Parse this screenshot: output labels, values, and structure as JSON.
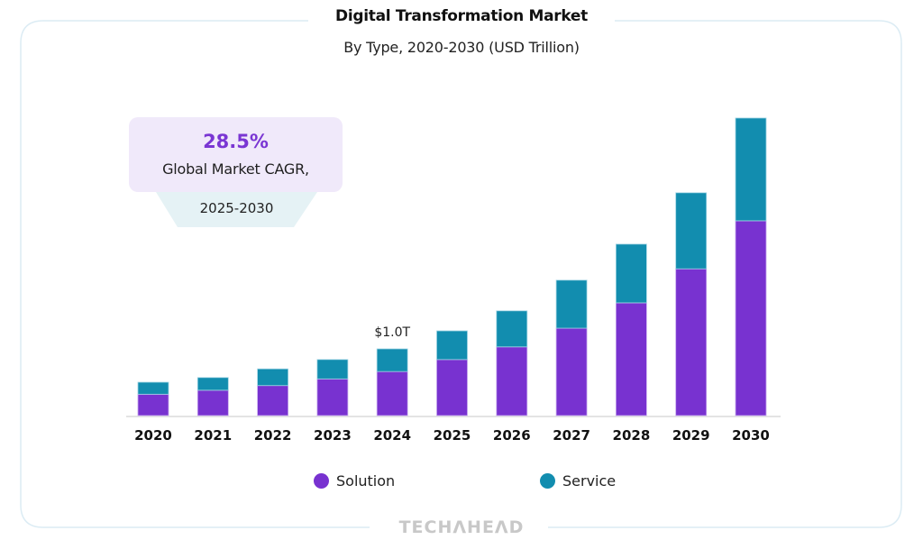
{
  "chart_data": {
    "type": "bar",
    "stacked": true,
    "title": "Digital Transformation Market",
    "subtitle": "By Type, 2020-2030 (USD Trillion)",
    "xlabel": "",
    "ylabel": "",
    "categories": [
      "2020",
      "2021",
      "2022",
      "2023",
      "2024",
      "2025",
      "2026",
      "2027",
      "2028",
      "2029",
      "2030"
    ],
    "series": [
      {
        "name": "Solution",
        "color": "#7832d0",
        "values": [
          0.32,
          0.38,
          0.45,
          0.55,
          0.66,
          0.84,
          1.03,
          1.31,
          1.69,
          2.2,
          2.92
        ]
      },
      {
        "name": "Service",
        "color": "#128daf",
        "values": [
          0.18,
          0.19,
          0.25,
          0.29,
          0.34,
          0.43,
          0.54,
          0.72,
          0.88,
          1.14,
          1.54
        ]
      }
    ],
    "ylim": [
      0,
      4.6
    ],
    "grid": false,
    "y_axis_visible": false,
    "legend_position": "bottom",
    "annotations": [
      {
        "category": "2024",
        "text": "$1.0T"
      }
    ]
  },
  "callout": {
    "value": "28.5%",
    "label": "Global Market CAGR,",
    "period": "2025-2030"
  },
  "legend": [
    {
      "name": "Solution",
      "color": "#7832d0"
    },
    {
      "name": "Service",
      "color": "#128daf"
    }
  ],
  "branding": {
    "logo_text": "TECHΛHEΛD"
  }
}
